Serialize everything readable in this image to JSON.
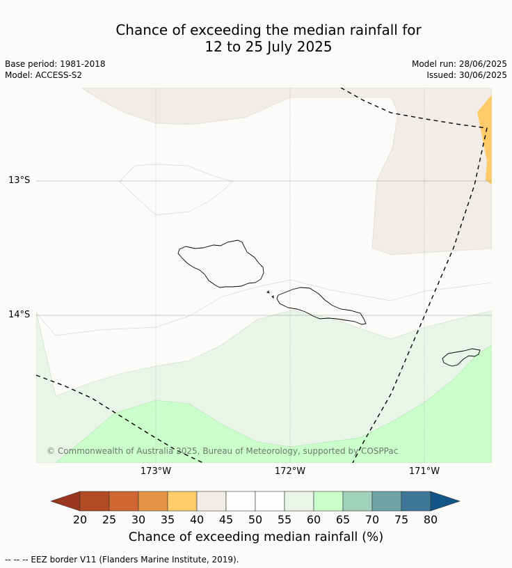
{
  "title_line1": "Chance of exceeding the median rainfall for",
  "title_line2": "12 to 25 July 2025",
  "base_period": "Base period: 1981-2018",
  "model": "Model: ACCESS-S2",
  "model_run": "Model run: 28/06/2025",
  "issued": "Issued: 30/06/2025",
  "lat_labels": [
    "13°S",
    "14°S"
  ],
  "lon_labels": [
    "173°W",
    "172°W",
    "171°W"
  ],
  "copyright": "© Commonwealth of Australia 2025, Bureau of Meteorology, supported by COSPPac",
  "colorbar": {
    "label": "Chance of exceeding median rainfall (%)",
    "ticks": [
      "20",
      "25",
      "30",
      "35",
      "40",
      "45",
      "50",
      "55",
      "60",
      "65",
      "70",
      "75",
      "80"
    ],
    "colors": [
      "#b24b25",
      "#cf6631",
      "#e39345",
      "#fdcb6a",
      "#f1ece7",
      "#fcfdfb",
      "#fcfdfb",
      "#eaf5e9",
      "#cafeca",
      "#9fd1bc",
      "#6ea3a8",
      "#3f7798"
    ],
    "under_color": "#9a361e",
    "over_color": "#145588"
  },
  "footer": "--  --  -- EEZ border V11 (Flanders Marine Institute, 2019)."
}
